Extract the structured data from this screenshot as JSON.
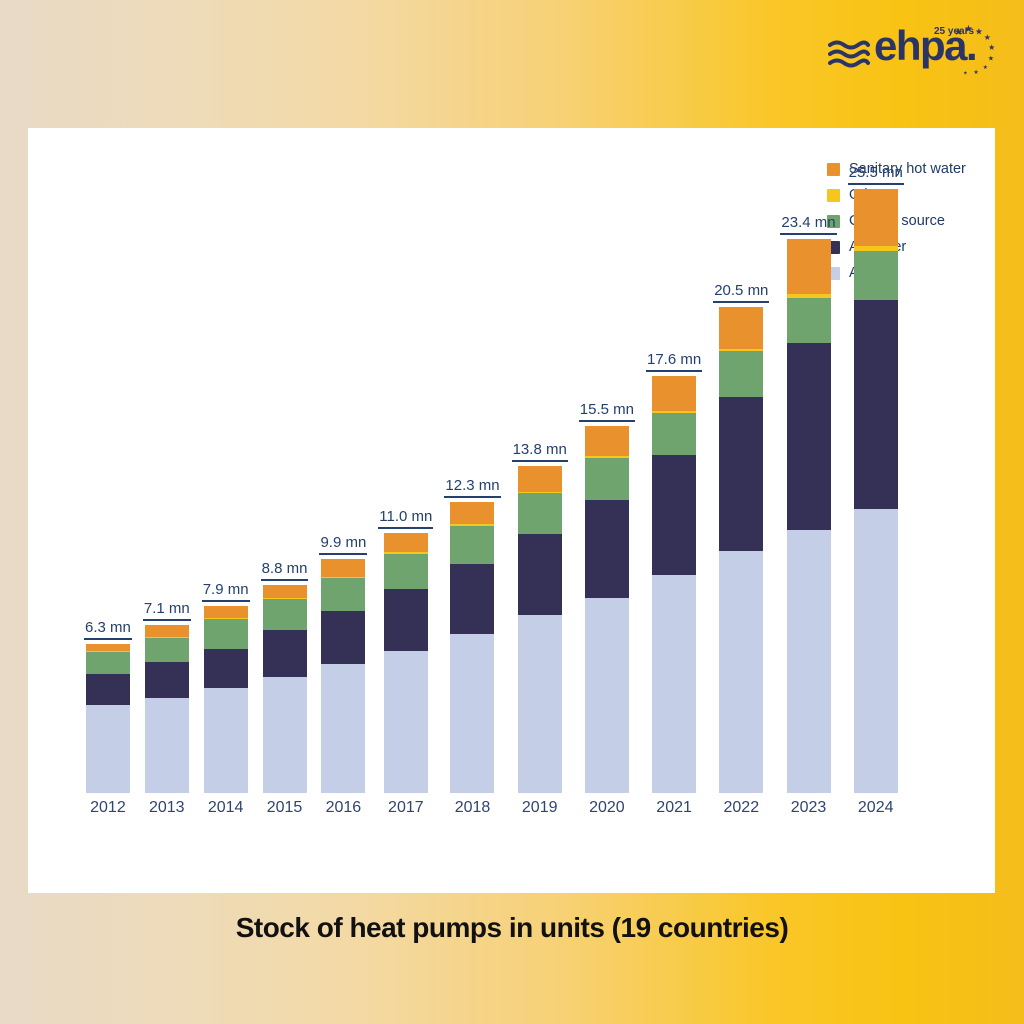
{
  "logo": {
    "wordmark": "ehpa.",
    "anniversary": "25 years",
    "color": "#2b3467"
  },
  "chart_data": {
    "type": "bar",
    "stacked": true,
    "title": "Stock of heat pumps in units (19 countries)",
    "unit": "mn",
    "categories": [
      "2012",
      "2013",
      "2014",
      "2015",
      "2016",
      "2017",
      "2018",
      "2019",
      "2020",
      "2021",
      "2022",
      "2023",
      "2024"
    ],
    "series": [
      {
        "name": "Air/air",
        "color": "#c4cfe7",
        "values": [
          3.7,
          4.0,
          4.45,
          4.9,
          5.45,
          6.0,
          6.7,
          7.5,
          8.25,
          9.2,
          10.2,
          11.1,
          12.0
        ]
      },
      {
        "name": "Air/water",
        "color": "#343056",
        "values": [
          1.32,
          1.55,
          1.65,
          2.0,
          2.22,
          2.6,
          2.95,
          3.45,
          4.1,
          5.05,
          6.5,
          7.9,
          8.8
        ]
      },
      {
        "name": "Ground source",
        "color": "#6fa46e",
        "values": [
          0.92,
          1.0,
          1.26,
          1.28,
          1.42,
          1.5,
          1.62,
          1.7,
          1.78,
          1.8,
          1.95,
          1.88,
          2.1
        ]
      },
      {
        "name": "Other",
        "color": "#f6c51e",
        "values": [
          0.04,
          0.04,
          0.04,
          0.05,
          0.05,
          0.06,
          0.07,
          0.08,
          0.09,
          0.1,
          0.1,
          0.17,
          0.21
        ]
      },
      {
        "name": "Sanitary hot water",
        "color": "#e9912d",
        "values": [
          0.32,
          0.51,
          0.5,
          0.57,
          0.76,
          0.84,
          0.96,
          1.07,
          1.28,
          1.45,
          1.75,
          2.35,
          2.39
        ]
      }
    ],
    "totals": [
      6.3,
      7.1,
      7.9,
      8.8,
      9.9,
      11.0,
      12.3,
      13.8,
      15.5,
      17.6,
      20.5,
      23.4,
      25.5
    ],
    "total_labels": [
      "6.3 mn",
      "7.1 mn",
      "7.9 mn",
      "8.8 mn",
      "9.9 mn",
      "11.0 mn",
      "12.3 mn",
      "13.8 mn",
      "15.5 mn",
      "17.6 mn",
      "20.5 mn",
      "23.4 mn",
      "25.5 mn"
    ],
    "ylim": [
      0,
      25.5
    ],
    "grid": false,
    "legend_position": "top-right",
    "legend_order_top_to_bottom": [
      "Sanitary hot water",
      "Other",
      "Ground source",
      "Air/water",
      "Air/air"
    ]
  }
}
